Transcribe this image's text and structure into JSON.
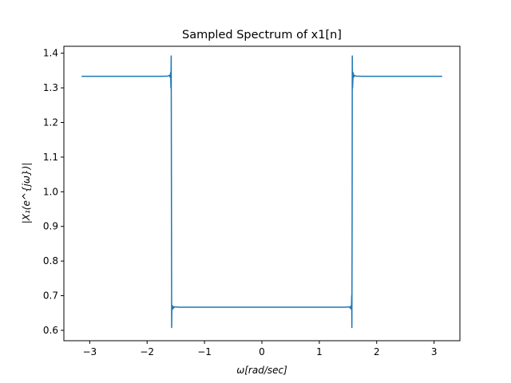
{
  "chart_data": {
    "type": "line",
    "title": "Sampled Spectrum of x1[n]",
    "xlabel": "ω[rad/sec]",
    "ylabel": "|X₁(e^{jω})|",
    "xlim": [
      -3.45,
      3.45
    ],
    "ylim": [
      0.57,
      1.42
    ],
    "grid": false,
    "legend": "none",
    "colors": {
      "line": "#1f77b4",
      "axes": "#000000",
      "background": "#ffffff"
    },
    "x_ticks": [
      {
        "value": -3,
        "label": "−3"
      },
      {
        "value": -2,
        "label": "−2"
      },
      {
        "value": -1,
        "label": "−1"
      },
      {
        "value": 0,
        "label": "0"
      },
      {
        "value": 1,
        "label": "1"
      },
      {
        "value": 2,
        "label": "2"
      },
      {
        "value": 3,
        "label": "3"
      }
    ],
    "y_ticks": [
      {
        "value": 0.6,
        "label": "0.6"
      },
      {
        "value": 0.7,
        "label": "0.7"
      },
      {
        "value": 0.8,
        "label": "0.8"
      },
      {
        "value": 0.9,
        "label": "0.9"
      },
      {
        "value": 1.0,
        "label": "1.0"
      },
      {
        "value": 1.1,
        "label": "1.1"
      },
      {
        "value": 1.2,
        "label": "1.2"
      },
      {
        "value": 1.3,
        "label": "1.3"
      },
      {
        "value": 1.4,
        "label": "1.4"
      }
    ],
    "series": [
      {
        "values": [
          [
            -3.1416,
            1.3333
          ],
          [
            -1.75,
            1.3333
          ],
          [
            -1.64,
            1.334
          ],
          [
            -1.61,
            1.336
          ],
          [
            -1.6,
            1.331
          ],
          [
            -1.59,
            1.344
          ],
          [
            -1.585,
            1.3
          ],
          [
            -1.58,
            1.392
          ],
          [
            -1.575,
            0.9
          ],
          [
            -1.572,
            0.608
          ],
          [
            -1.568,
            0.672
          ],
          [
            -1.56,
            0.66
          ],
          [
            -1.55,
            0.67
          ],
          [
            -1.54,
            0.664
          ],
          [
            -1.52,
            0.668
          ],
          [
            -1.45,
            0.6667
          ],
          [
            1.45,
            0.6667
          ],
          [
            1.52,
            0.668
          ],
          [
            1.54,
            0.664
          ],
          [
            1.55,
            0.67
          ],
          [
            1.56,
            0.66
          ],
          [
            1.565,
            0.7
          ],
          [
            1.568,
            0.608
          ],
          [
            1.572,
            0.9
          ],
          [
            1.575,
            1.392
          ],
          [
            1.58,
            1.3
          ],
          [
            1.59,
            1.344
          ],
          [
            1.6,
            1.331
          ],
          [
            1.61,
            1.336
          ],
          [
            1.64,
            1.334
          ],
          [
            1.75,
            1.3333
          ],
          [
            3.1416,
            1.3333
          ]
        ]
      }
    ]
  }
}
